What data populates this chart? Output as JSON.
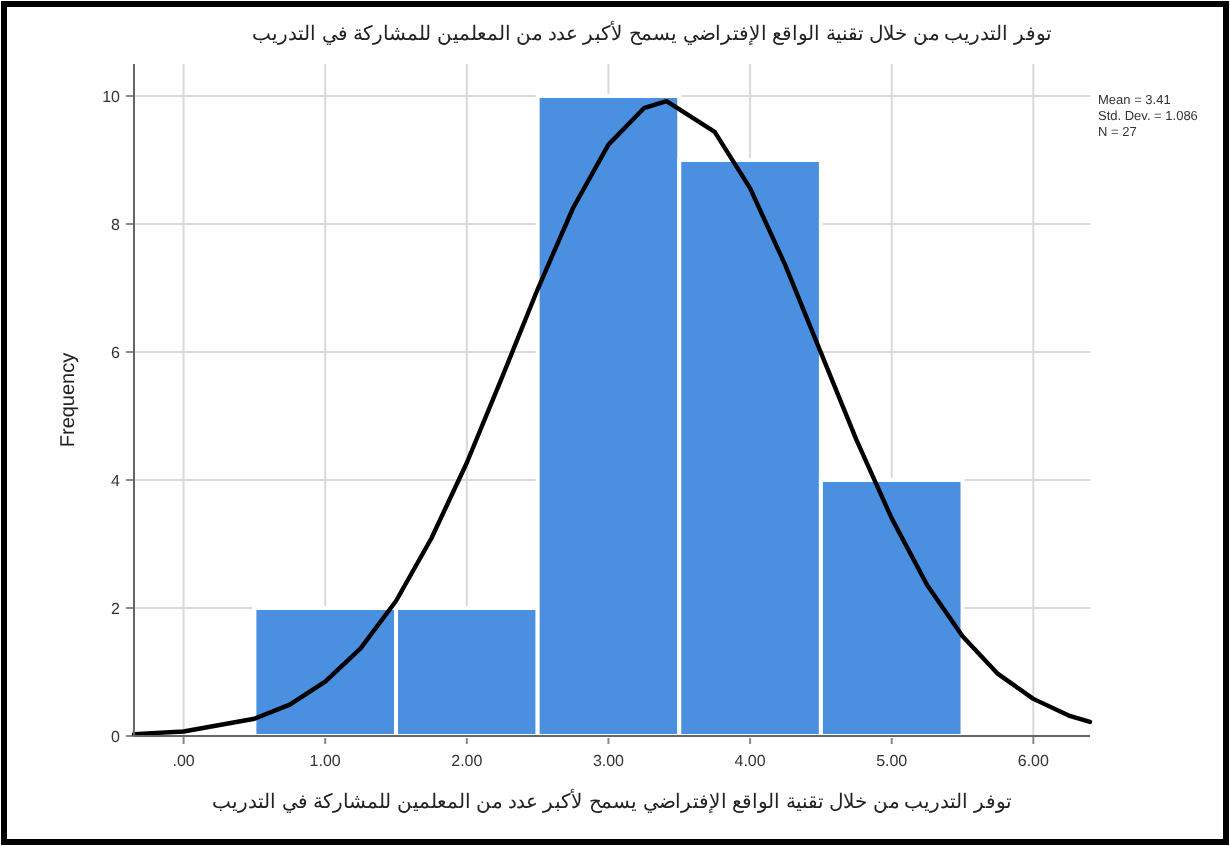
{
  "chart_data": {
    "type": "histogram",
    "title": "توفر التدريب من خلال تقنية الواقع الإفتراضي يسمح لأكبر عدد من المعلمين للمشاركة في التدريب",
    "xlabel": "توفر التدريب من خلال تقنية الواقع الإفتراضي يسمح لأكبر عدد من المعلمين للمشاركة في التدريب",
    "ylabel": "Frequency",
    "bins": [
      0.5,
      1.5,
      2.5,
      3.5,
      4.5,
      5.5
    ],
    "values": [
      2,
      2,
      10,
      9,
      4
    ],
    "color": "#4a8fe0",
    "series": [
      {
        "type": "line",
        "color": "#000000",
        "x": [
          -0.35,
          0,
          0.5,
          0.75,
          1,
          1.25,
          1.5,
          1.75,
          2,
          2.25,
          2.5,
          2.75,
          3,
          3.25,
          3.41,
          3.75,
          4,
          4.25,
          4.5,
          4.75,
          5,
          5.25,
          5.5,
          5.75,
          6,
          6.25,
          6.4
        ],
        "values": [
          0.03,
          0.07,
          0.27,
          0.49,
          0.85,
          1.37,
          2.11,
          3.09,
          4.27,
          5.61,
          6.98,
          8.25,
          9.24,
          9.81,
          9.92,
          9.44,
          8.56,
          7.35,
          5.99,
          4.63,
          3.4,
          2.36,
          1.56,
          0.97,
          0.58,
          0.32,
          0.22
        ]
      }
    ],
    "annotations": [
      "Mean = 3.41",
      "Std. Dev. = 1.086",
      "N = 27"
    ],
    "xlim": [
      -0.35,
      6.4
    ],
    "ylim": [
      0,
      10.5
    ],
    "xticks": [
      {
        "value": 0,
        "label": ".00"
      },
      {
        "value": 1,
        "label": "1.00"
      },
      {
        "value": 2,
        "label": "2.00"
      },
      {
        "value": 3,
        "label": "3.00"
      },
      {
        "value": 4,
        "label": "4.00"
      },
      {
        "value": 5,
        "label": "5.00"
      },
      {
        "value": 6,
        "label": "6.00"
      }
    ],
    "yticks": [
      0,
      2,
      4,
      6,
      8,
      10
    ],
    "grid": true
  }
}
